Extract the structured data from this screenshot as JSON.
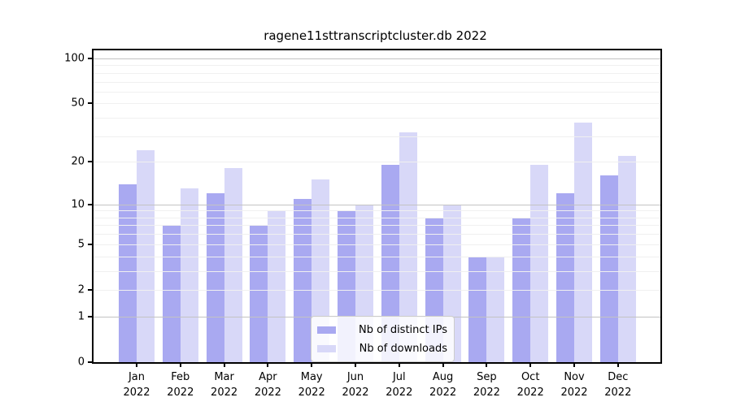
{
  "chart_data": {
    "type": "bar",
    "title": "ragene11sttranscriptcluster.db 2022",
    "categories": [
      "Jan",
      "Feb",
      "Mar",
      "Apr",
      "May",
      "Jun",
      "Jul",
      "Aug",
      "Sep",
      "Oct",
      "Nov",
      "Dec"
    ],
    "x_tick_second_line": "2022",
    "series": [
      {
        "name": "Nb of distinct IPs",
        "color": "#a9a9f1",
        "values": [
          14,
          7,
          12,
          7,
          11,
          9,
          19,
          8,
          4,
          8,
          12,
          16
        ]
      },
      {
        "name": "Nb of downloads",
        "color": "#d8d8f8",
        "values": [
          24,
          13,
          18,
          9,
          15,
          10,
          32,
          10,
          4,
          19,
          37,
          22
        ]
      }
    ],
    "y_ticks": [
      100,
      50,
      20,
      10,
      5,
      2,
      1,
      0
    ],
    "y_minor_gridlines": [
      2,
      3,
      4,
      5,
      6,
      7,
      8,
      9,
      20,
      30,
      40,
      50,
      60,
      70,
      80,
      90
    ],
    "y_major_gridlines": [
      1,
      10,
      100
    ],
    "scale": "log10(1+v)",
    "ylim": [
      0,
      110
    ],
    "grid": true,
    "legend_position": "lower center-right inside plot",
    "bar_edge_color": "none",
    "axis_color": "#000000",
    "background_color": "#ffffff"
  }
}
